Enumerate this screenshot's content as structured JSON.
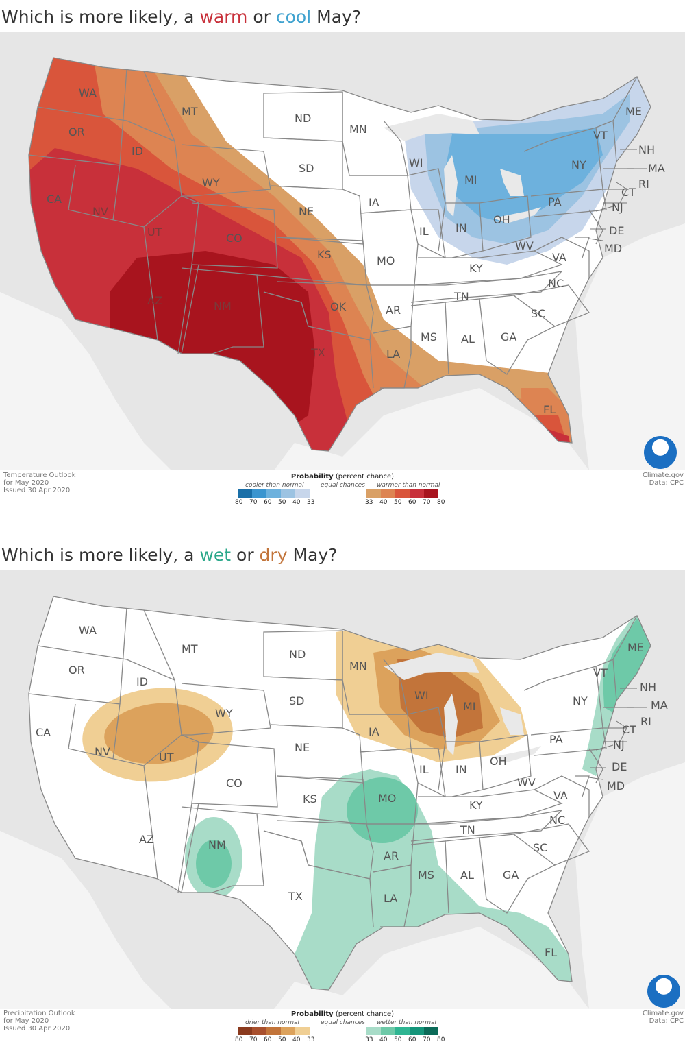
{
  "temperature": {
    "title_prefix": "Which is more likely, a ",
    "title_word1": "warm",
    "title_mid": " or ",
    "title_word2": "cool",
    "title_suffix": " May?",
    "word1_color": "#c8303a",
    "word2_color": "#3fa2cf",
    "source_line1": "Temperature Outlook",
    "source_line2": "for May 2020",
    "source_line3": "Issued 30 Apr 2020",
    "credit_line1": "Climate.gov",
    "credit_line2": "Data: CPC",
    "legend": {
      "title_bold": "Probability",
      "title_rest": " (percent chance)",
      "left_label": "cooler than normal",
      "middle_label": "equal chances",
      "right_label": "warmer than normal",
      "left_colors": [
        "#1a6fa8",
        "#3b95cf",
        "#6db1dd",
        "#9cc3e2",
        "#c7d6eb"
      ],
      "right_colors": [
        "#d9a066",
        "#dd8452",
        "#d9553b",
        "#c8303a",
        "#a8141e"
      ],
      "left_ticks": [
        "80",
        "70",
        "60",
        "50",
        "40",
        "33"
      ],
      "right_ticks": [
        "33",
        "40",
        "50",
        "60",
        "70",
        "80"
      ]
    },
    "states": [
      "WA",
      "OR",
      "CA",
      "NV",
      "ID",
      "MT",
      "WY",
      "UT",
      "AZ",
      "CO",
      "NM",
      "ND",
      "SD",
      "NE",
      "KS",
      "OK",
      "TX",
      "MN",
      "IA",
      "MO",
      "AR",
      "LA",
      "WI",
      "IL",
      "MI",
      "IN",
      "OH",
      "KY",
      "TN",
      "MS",
      "AL",
      "GA",
      "FL",
      "SC",
      "NC",
      "VA",
      "WV",
      "PA",
      "NY",
      "ME",
      "VT",
      "NH",
      "MA",
      "RI",
      "CT",
      "NJ",
      "DE",
      "MD"
    ]
  },
  "precipitation": {
    "title_prefix": "Which is more likely, a ",
    "title_word1": "wet",
    "title_mid": " or ",
    "title_word2": "dry",
    "title_suffix": " May?",
    "word1_color": "#2aa88a",
    "word2_color": "#c2743a",
    "source_line1": "Precipitation Outlook",
    "source_line2": "for May 2020",
    "source_line3": "Issued 30 Apr 2020",
    "credit_line1": "Climate.gov",
    "credit_line2": "Data: CPC",
    "legend": {
      "title_bold": "Probability",
      "title_rest": " (percent chance)",
      "left_label": "drier than normal",
      "middle_label": "equal chances",
      "right_label": "wetter than normal",
      "left_colors": [
        "#8a3a1e",
        "#a8502e",
        "#c2743a",
        "#dca25c",
        "#f0cf94"
      ],
      "right_colors": [
        "#a8dcc8",
        "#6ec9a8",
        "#2fb592",
        "#15957a",
        "#0b6a58"
      ],
      "left_ticks": [
        "80",
        "70",
        "60",
        "50",
        "40",
        "33"
      ],
      "right_ticks": [
        "33",
        "40",
        "50",
        "60",
        "70",
        "80"
      ]
    },
    "states": [
      "WA",
      "OR",
      "CA",
      "NV",
      "ID",
      "MT",
      "WY",
      "UT",
      "AZ",
      "CO",
      "NM",
      "ND",
      "SD",
      "NE",
      "KS",
      "OK",
      "TX",
      "MN",
      "IA",
      "MO",
      "AR",
      "LA",
      "WI",
      "IL",
      "MI",
      "IN",
      "OH",
      "KY",
      "TN",
      "MS",
      "AL",
      "GA",
      "FL",
      "SC",
      "NC",
      "VA",
      "WV",
      "PA",
      "NY",
      "ME",
      "VT",
      "NH",
      "MA",
      "RI",
      "CT",
      "NJ",
      "DE",
      "MD"
    ]
  }
}
